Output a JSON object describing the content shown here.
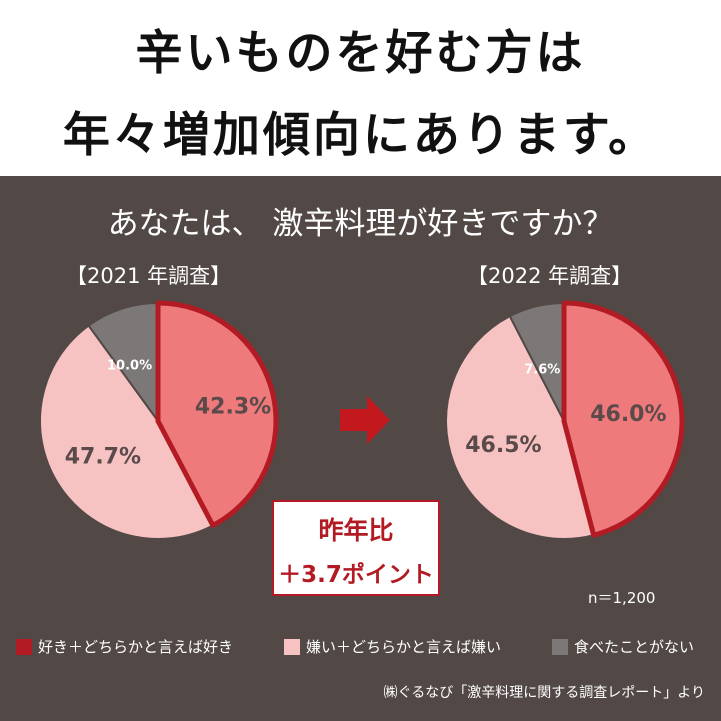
{
  "headline": {
    "line1": "辛いものを好む方は",
    "line2": "年々増加傾向にあります。"
  },
  "question": "あなたは、 激辛料理が好きですか？",
  "colors": {
    "like": "#ef7a7b",
    "like_border": "#b31b24",
    "dislike": "#f6c3c2",
    "never": "#7d7878",
    "panel": "#524946"
  },
  "chart_data": [
    {
      "type": "pie",
      "title": "【2021 年調査】",
      "slices": [
        {
          "name": "好き＋どちらかと言えば好き",
          "value": 42.3,
          "label": "42.3%"
        },
        {
          "name": "嫌い＋どちらかと言えば嫌い",
          "value": 47.7,
          "label": "47.7%"
        },
        {
          "name": "食べたことがない",
          "value": 10.0,
          "label": "10.0%"
        }
      ]
    },
    {
      "type": "pie",
      "title": "【2022 年調査】",
      "slices": [
        {
          "name": "好き＋どちらかと言えば好き",
          "value": 46.0,
          "label": "46.0%"
        },
        {
          "name": "嫌い＋どちらかと言えば嫌い",
          "value": 46.5,
          "label": "46.5%"
        },
        {
          "name": "食べたことがない",
          "value": 7.6,
          "label": "7.6%"
        }
      ]
    }
  ],
  "callout": {
    "line1": "昨年比",
    "line2": "＋3.7ポイント"
  },
  "sample_size": "n＝1,200",
  "legend": [
    {
      "label": "好き＋どちらかと言えば好き"
    },
    {
      "label": "嫌い＋どちらかと言えば嫌い"
    },
    {
      "label": "食べたことがない"
    }
  ],
  "source": "㈱ぐるなび「激辛料理に関する調査レポート」より"
}
